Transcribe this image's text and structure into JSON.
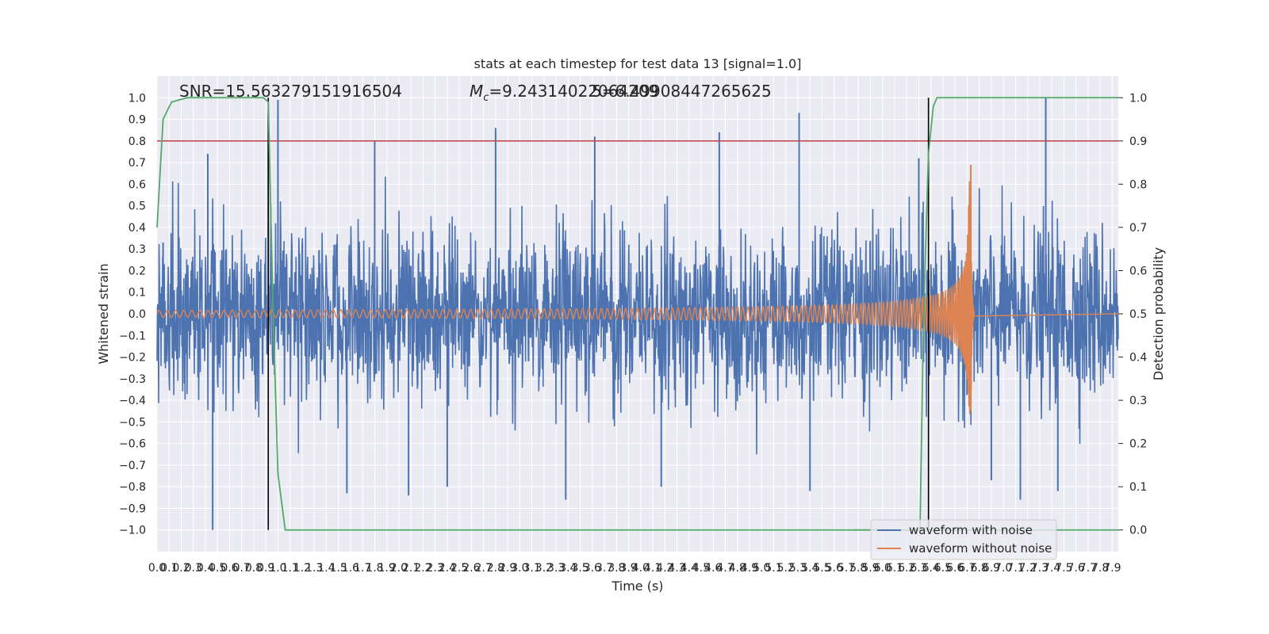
{
  "chart_data": {
    "type": "line",
    "title": "stats at each timestep for test data 13 [signal=1.0]",
    "xlabel": "Time (s)",
    "ylabel": "Whitened strain",
    "y2label": "Detection probability",
    "xlim": [
      0.0,
      7.95
    ],
    "ylim": [
      -1.1,
      1.1
    ],
    "y2lim": [
      -0.05,
      1.05
    ],
    "x_tick_step": 0.1,
    "y_tick_step": 0.1,
    "y2_tick_step": 0.1,
    "grid": true,
    "legend_position": "bottom-right",
    "annotations": {
      "snr": "SNR=15.563279151916504",
      "mc_symbol": "M",
      "mc_sub": "c",
      "mc_value": "=9.24314022064209",
      "overlap": "5=6.49908447265625"
    },
    "threshold": {
      "y2": 0.9,
      "color": "#c44e52"
    },
    "vertical_lines": {
      "x": [
        0.92,
        6.38
      ],
      "ymin": -1.0,
      "ymax": 1.0,
      "color": "#000000"
    },
    "noise_spikes": [
      [
        0.05,
        0.33
      ],
      [
        0.42,
        0.74
      ],
      [
        0.46,
        -1.0
      ],
      [
        0.92,
        0.8
      ],
      [
        1.0,
        0.99
      ],
      [
        1.57,
        -0.83
      ],
      [
        1.8,
        0.8
      ],
      [
        2.08,
        -0.84
      ],
      [
        2.4,
        -0.8
      ],
      [
        2.8,
        0.86
      ],
      [
        3.38,
        -0.86
      ],
      [
        3.62,
        0.82
      ],
      [
        4.17,
        -0.8
      ],
      [
        4.65,
        0.84
      ],
      [
        5.31,
        0.93
      ],
      [
        5.4,
        -0.82
      ],
      [
        6.3,
        0.72
      ],
      [
        6.9,
        -0.77
      ],
      [
        7.14,
        -0.86
      ],
      [
        7.35,
        1.0
      ],
      [
        7.45,
        -0.82
      ]
    ],
    "series": [
      {
        "name": "waveform with noise",
        "color": "#4c72b0",
        "noise_std": 0.2,
        "noise_clip": 0.72
      },
      {
        "name": "waveform without noise",
        "color": "#dd8452",
        "chirp": {
          "t_merge": 6.73,
          "ringdown_end": 6.76,
          "base_amplitude": 0.016,
          "peak_amplitude": 0.69,
          "trough_amplitude": -0.45,
          "base_freq": 14.6
        }
      },
      {
        "name": "detection probability",
        "axis": "right",
        "color": "#55a868",
        "points": [
          [
            0.0,
            0.7
          ],
          [
            0.05,
            0.95
          ],
          [
            0.12,
            0.99
          ],
          [
            0.25,
            1.0
          ],
          [
            0.88,
            1.0
          ],
          [
            0.92,
            0.99
          ],
          [
            0.96,
            0.5
          ],
          [
            1.0,
            0.13
          ],
          [
            1.06,
            0.0
          ],
          [
            7.95,
            0.0
          ]
        ],
        "points_b": [
          [
            5.75,
            0.0
          ],
          [
            6.31,
            0.0
          ],
          [
            6.34,
            0.5
          ],
          [
            6.38,
            0.87
          ],
          [
            6.42,
            0.98
          ],
          [
            6.45,
            1.0
          ],
          [
            7.95,
            1.0
          ]
        ]
      }
    ]
  }
}
